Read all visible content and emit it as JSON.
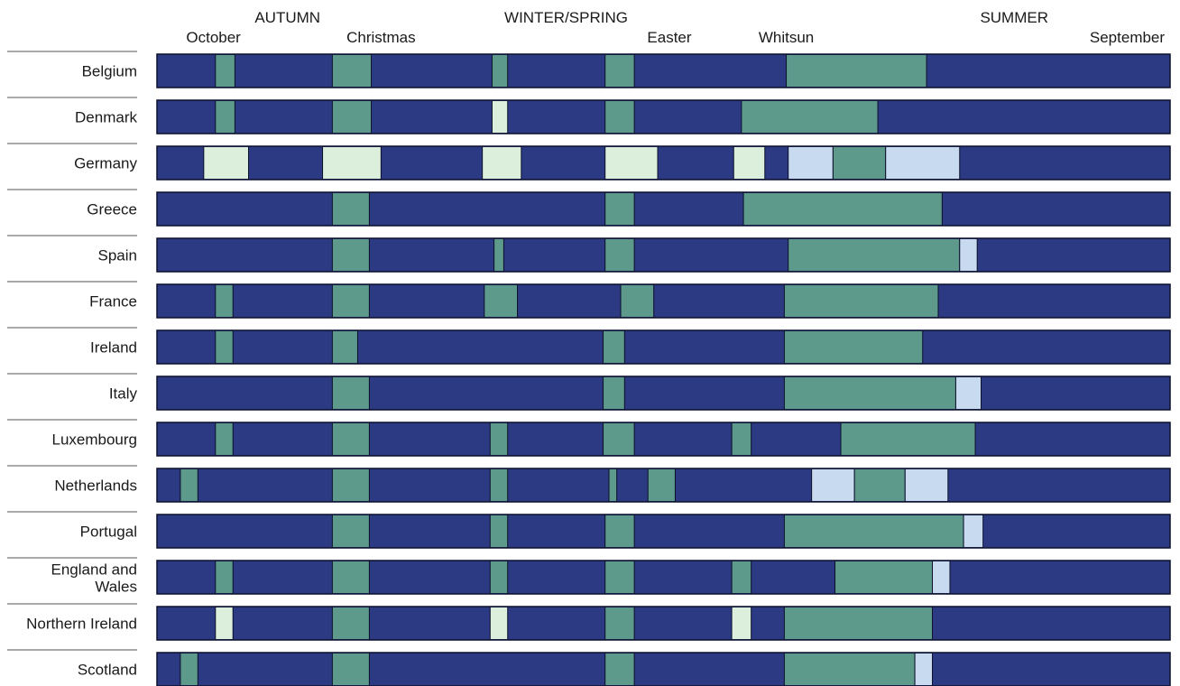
{
  "chart_data": {
    "type": "timeline",
    "x_unit": "week of school year",
    "x_range": [
      0,
      52
    ],
    "seasons": [
      {
        "label": "AUTUMN",
        "at": 6.7
      },
      {
        "label": "WINTER/SPRING",
        "at": 21
      },
      {
        "label": "SUMMER",
        "at": 44
      }
    ],
    "holiday_markers": [
      {
        "label": "October",
        "at": 2.9
      },
      {
        "label": "Christmas",
        "at": 11.5
      },
      {
        "label": "Easter",
        "at": 26.3
      },
      {
        "label": "Whitsun",
        "at": 32.3
      },
      {
        "label": "September",
        "at": 49.8
      }
    ],
    "colors": {
      "school": "#2b3a82",
      "holiday": "#5d9a8c",
      "regional": "#dcefdc",
      "variable": "#c7daf0"
    },
    "countries": [
      {
        "name": "Belgium",
        "segments": [
          {
            "kind": "holiday",
            "start": 3.0,
            "end": 4.0
          },
          {
            "kind": "holiday",
            "start": 9.0,
            "end": 11.0
          },
          {
            "kind": "holiday",
            "start": 17.2,
            "end": 18.0
          },
          {
            "kind": "holiday",
            "start": 23.0,
            "end": 24.5
          },
          {
            "kind": "holiday",
            "start": 32.3,
            "end": 39.5
          }
        ]
      },
      {
        "name": "Denmark",
        "segments": [
          {
            "kind": "holiday",
            "start": 3.0,
            "end": 4.0
          },
          {
            "kind": "holiday",
            "start": 9.0,
            "end": 11.0
          },
          {
            "kind": "regional",
            "start": 17.2,
            "end": 18.0
          },
          {
            "kind": "holiday",
            "start": 23.0,
            "end": 24.5
          },
          {
            "kind": "holiday",
            "start": 30.0,
            "end": 37.0
          }
        ]
      },
      {
        "name": "Germany",
        "segments": [
          {
            "kind": "regional",
            "start": 2.4,
            "end": 4.7
          },
          {
            "kind": "regional",
            "start": 8.5,
            "end": 11.5
          },
          {
            "kind": "regional",
            "start": 16.7,
            "end": 18.7
          },
          {
            "kind": "regional",
            "start": 23.0,
            "end": 25.7
          },
          {
            "kind": "regional",
            "start": 29.6,
            "end": 31.2
          },
          {
            "kind": "variable",
            "start": 32.4,
            "end": 34.7
          },
          {
            "kind": "holiday",
            "start": 34.7,
            "end": 37.4
          },
          {
            "kind": "variable",
            "start": 37.4,
            "end": 41.2
          }
        ]
      },
      {
        "name": "Greece",
        "segments": [
          {
            "kind": "holiday",
            "start": 9.0,
            "end": 10.9
          },
          {
            "kind": "holiday",
            "start": 23.0,
            "end": 24.5
          },
          {
            "kind": "holiday",
            "start": 30.1,
            "end": 40.3
          }
        ]
      },
      {
        "name": "Spain",
        "segments": [
          {
            "kind": "holiday",
            "start": 9.0,
            "end": 10.9
          },
          {
            "kind": "holiday",
            "start": 17.3,
            "end": 17.8
          },
          {
            "kind": "holiday",
            "start": 23.0,
            "end": 24.5
          },
          {
            "kind": "holiday",
            "start": 32.4,
            "end": 41.2
          },
          {
            "kind": "variable",
            "start": 41.2,
            "end": 42.1
          }
        ]
      },
      {
        "name": "France",
        "segments": [
          {
            "kind": "holiday",
            "start": 3.0,
            "end": 3.9
          },
          {
            "kind": "holiday",
            "start": 9.0,
            "end": 10.9
          },
          {
            "kind": "holiday",
            "start": 16.8,
            "end": 18.5
          },
          {
            "kind": "holiday",
            "start": 23.8,
            "end": 25.5
          },
          {
            "kind": "holiday",
            "start": 32.2,
            "end": 40.1
          }
        ]
      },
      {
        "name": "Ireland",
        "segments": [
          {
            "kind": "holiday",
            "start": 3.0,
            "end": 3.9
          },
          {
            "kind": "holiday",
            "start": 9.0,
            "end": 10.3
          },
          {
            "kind": "holiday",
            "start": 22.9,
            "end": 24.0
          },
          {
            "kind": "holiday",
            "start": 32.2,
            "end": 39.3
          }
        ]
      },
      {
        "name": "Italy",
        "segments": [
          {
            "kind": "holiday",
            "start": 9.0,
            "end": 10.9
          },
          {
            "kind": "holiday",
            "start": 22.9,
            "end": 24.0
          },
          {
            "kind": "holiday",
            "start": 32.2,
            "end": 41.0
          },
          {
            "kind": "variable",
            "start": 41.0,
            "end": 42.3
          }
        ]
      },
      {
        "name": "Luxembourg",
        "segments": [
          {
            "kind": "holiday",
            "start": 3.0,
            "end": 3.9
          },
          {
            "kind": "holiday",
            "start": 9.0,
            "end": 10.9
          },
          {
            "kind": "holiday",
            "start": 17.1,
            "end": 18.0
          },
          {
            "kind": "holiday",
            "start": 22.9,
            "end": 24.5
          },
          {
            "kind": "holiday",
            "start": 29.5,
            "end": 30.5
          },
          {
            "kind": "holiday",
            "start": 35.1,
            "end": 42.0
          }
        ]
      },
      {
        "name": "Netherlands",
        "segments": [
          {
            "kind": "holiday",
            "start": 1.2,
            "end": 2.1
          },
          {
            "kind": "holiday",
            "start": 9.0,
            "end": 10.9
          },
          {
            "kind": "holiday",
            "start": 17.1,
            "end": 18.0
          },
          {
            "kind": "holiday",
            "start": 23.2,
            "end": 23.6
          },
          {
            "kind": "holiday",
            "start": 25.2,
            "end": 26.6
          },
          {
            "kind": "variable",
            "start": 33.6,
            "end": 35.8
          },
          {
            "kind": "holiday",
            "start": 35.8,
            "end": 38.4
          },
          {
            "kind": "variable",
            "start": 38.4,
            "end": 40.6
          }
        ]
      },
      {
        "name": "Portugal",
        "segments": [
          {
            "kind": "holiday",
            "start": 9.0,
            "end": 10.9
          },
          {
            "kind": "holiday",
            "start": 17.1,
            "end": 18.0
          },
          {
            "kind": "holiday",
            "start": 23.0,
            "end": 24.5
          },
          {
            "kind": "holiday",
            "start": 32.2,
            "end": 41.4
          },
          {
            "kind": "variable",
            "start": 41.4,
            "end": 42.4
          }
        ]
      },
      {
        "name": "England and Wales",
        "segments": [
          {
            "kind": "holiday",
            "start": 3.0,
            "end": 3.9
          },
          {
            "kind": "holiday",
            "start": 9.0,
            "end": 10.9
          },
          {
            "kind": "holiday",
            "start": 17.1,
            "end": 18.0
          },
          {
            "kind": "holiday",
            "start": 23.0,
            "end": 24.5
          },
          {
            "kind": "holiday",
            "start": 29.5,
            "end": 30.5
          },
          {
            "kind": "holiday",
            "start": 34.8,
            "end": 39.8
          },
          {
            "kind": "variable",
            "start": 39.8,
            "end": 40.7
          }
        ]
      },
      {
        "name": "Northern Ireland",
        "segments": [
          {
            "kind": "regional",
            "start": 3.0,
            "end": 3.9
          },
          {
            "kind": "holiday",
            "start": 9.0,
            "end": 10.9
          },
          {
            "kind": "regional",
            "start": 17.1,
            "end": 18.0
          },
          {
            "kind": "holiday",
            "start": 23.0,
            "end": 24.5
          },
          {
            "kind": "regional",
            "start": 29.5,
            "end": 30.5
          },
          {
            "kind": "holiday",
            "start": 32.2,
            "end": 39.8
          }
        ]
      },
      {
        "name": "Scotland",
        "segments": [
          {
            "kind": "holiday",
            "start": 1.2,
            "end": 2.1
          },
          {
            "kind": "holiday",
            "start": 9.0,
            "end": 10.9
          },
          {
            "kind": "holiday",
            "start": 23.0,
            "end": 24.5
          },
          {
            "kind": "holiday",
            "start": 32.2,
            "end": 38.9
          },
          {
            "kind": "variable",
            "start": 38.9,
            "end": 39.8
          }
        ]
      }
    ]
  }
}
